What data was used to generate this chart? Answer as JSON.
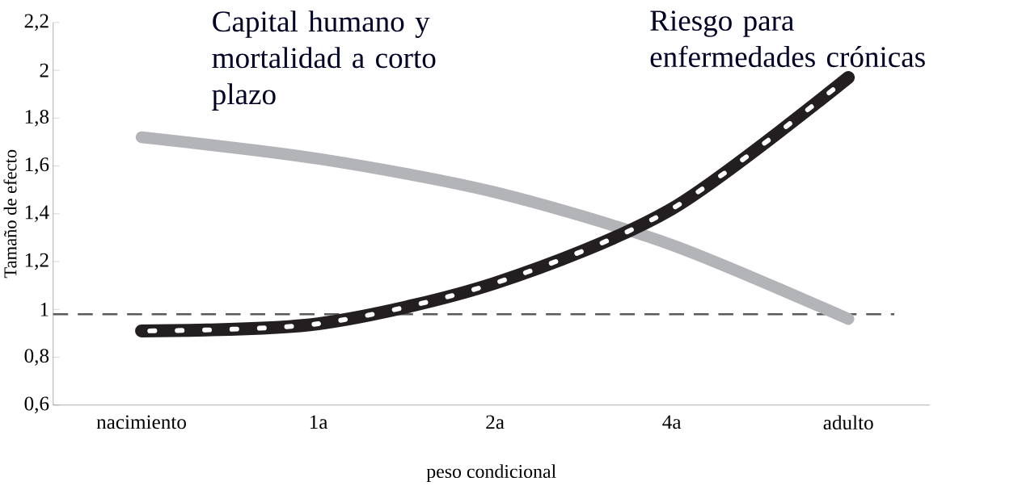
{
  "chart_data": {
    "type": "line",
    "xlabel": "peso condicional",
    "ylabel": "Tamaño de efecto",
    "categories": [
      "nacimiento",
      "1a",
      "2a",
      "4a",
      "adulto"
    ],
    "series": [
      {
        "name": "Capital humano y mortalidad a corto plazo",
        "color": "#b3b4b8",
        "values": [
          1.72,
          1.63,
          1.49,
          1.27,
          0.96
        ]
      },
      {
        "name": "Riesgo para enfermedades crónicas",
        "color": "#231f20",
        "values": [
          0.91,
          0.94,
          1.11,
          1.42,
          1.97
        ]
      }
    ],
    "ylim": [
      0.6,
      2.2
    ],
    "yticks": [
      {
        "value": 0.6,
        "label": "0,6"
      },
      {
        "value": 0.8,
        "label": "0,8"
      },
      1,
      {
        "value": 1.2,
        "label": "1,2"
      },
      {
        "value": 1.4,
        "label": "1,4"
      },
      {
        "value": 1.6,
        "label": "1,6"
      },
      {
        "value": 1.8,
        "label": "1,8"
      },
      2,
      {
        "value": 2.2,
        "label": "2,2"
      }
    ],
    "ref_lines": [
      {
        "axis": "y",
        "value": 0.98,
        "color": "#58595b",
        "line_style": "dashed"
      }
    ],
    "grid": false,
    "legend": false
  }
}
